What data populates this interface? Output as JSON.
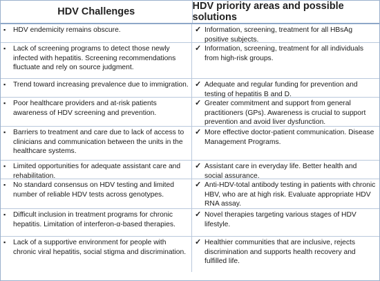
{
  "table": {
    "header": {
      "left": "HDV Challenges",
      "right": "HDV priority areas and possible solutions"
    },
    "bullet_icon": "square-bullet-icon",
    "check_icon": "checkmark-icon",
    "rows": [
      {
        "challenge": "HDV endemicity remains obscure.",
        "solution": "Information, screening, treatment for all HBsAg positive subjects."
      },
      {
        "challenge": "Lack of screening programs to detect those newly infected with hepatitis. Screening recommendations fluctuate and rely on source judgment.",
        "solution": "Information, screening, treatment for all individuals from high-risk groups."
      },
      {
        "challenge": "Trend toward increasing prevalence due to immigration.",
        "solution": "Adequate and regular funding for prevention and testing of hepatitis B and D."
      },
      {
        "challenge": "Poor healthcare providers and at-risk patients awareness of HDV screening and prevention.",
        "solution": "Greater commitment and support from general practitioners (GPs). Awareness is crucial to support prevention and avoid liver dysfunction."
      },
      {
        "challenge": "Barriers to treatment and care due to lack of access to clinicians and communication between the units in the healthcare systems.",
        "solution": "More effective doctor-patient communication. Disease Management Programs."
      },
      {
        "challenge": "Limited opportunities for adequate assistant care and rehabilitation.",
        "solution": "Assistant care in everyday life. Better health and social assurance."
      },
      {
        "challenge": "No standard consensus on HDV testing and limited number of reliable HDV tests across genotypes.",
        "solution": "Anti-HDV-total antibody testing in patients with chronic HBV, who are at high risk. Evaluate appropriate HDV RNA assay."
      },
      {
        "challenge": "Difficult inclusion in treatment programs for chronic hepatitis. Limitation of interferon-α-based therapies.",
        "solution": "Novel therapies targeting various stages of HDV lifestyle."
      },
      {
        "challenge": "Lack of a supportive environment for people with chronic viral hepatitis, social stigma and discrimination.",
        "solution": "Healthier communities that are inclusive, rejects discrimination and supports health recovery and fulfilled life."
      }
    ]
  }
}
